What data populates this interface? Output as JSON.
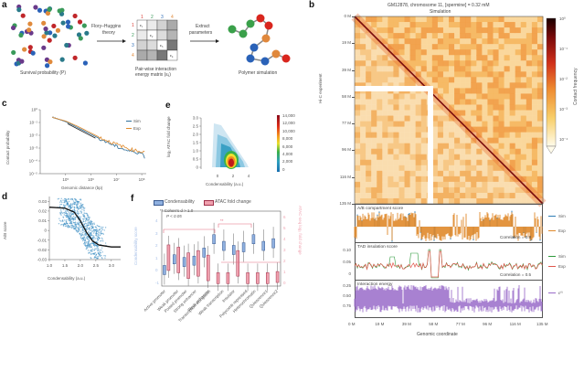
{
  "panels": {
    "a": {
      "label": "a",
      "survival_caption": "Survival probability (P)",
      "arrow1_text_line1": "Flory–Huggins",
      "arrow1_text_line2": "theory",
      "matrix_caption_line1": "Pair-wise interaction",
      "matrix_caption_line2": "energy matrix (εᵢⱼ)",
      "matrix_indices": [
        "1",
        "2",
        "3",
        "4"
      ],
      "matrix_diag": [
        "ε₁",
        "ε₂",
        "ε₃",
        "ε₄"
      ],
      "arrow2_text_line1": "Extract",
      "arrow2_text_line2": "parameters",
      "polymer_caption": "Polymer simulation",
      "index_colors": [
        "#d9403a",
        "#3a9a5a",
        "#2f6db5",
        "#e08a3c"
      ]
    },
    "b": {
      "label": "b",
      "title": "GM12878, chromosome 11, [spermine] = 0.32 mM",
      "subtitle": "Simulation",
      "y_axis_label": "Hi-C experiment",
      "y_ticks": [
        "0 M",
        "19 M",
        "39 M",
        "58 M",
        "77 M",
        "96 M",
        "116 M",
        "135 M"
      ],
      "x_ticks": [
        "0 M",
        "19 M",
        "39 M",
        "58 M",
        "77 M",
        "96 M",
        "116 M",
        "135 M"
      ],
      "x_axis_label": "Genomic coordinate",
      "colorbar_label": "Contact frequency",
      "colorbar_ticks": [
        "10⁰",
        "10⁻¹",
        "10⁻²",
        "10⁻³",
        "10⁻⁴"
      ],
      "tracks": [
        {
          "title": "A/B compartment score",
          "legend": [
            "Sim",
            "Exp"
          ],
          "legend_colors": [
            "#2f7db5",
            "#e08a2c"
          ],
          "correlation": "Correlation = 0.8",
          "y_ticks": []
        },
        {
          "title": "TAD insulation score",
          "legend": [
            "Sim",
            "Exp"
          ],
          "legend_colors": [
            "#2e9a3c",
            "#e0574c"
          ],
          "correlation": "Correlation = 0.5",
          "y_ticks": [
            "0.10",
            "0.05",
            "0"
          ]
        },
        {
          "title": "Interaction energy",
          "legend": [
            "ε⁽ⁱ⁾"
          ],
          "legend_colors": [
            "#9a6cc9"
          ],
          "correlation": "",
          "y_ticks": [
            "0.25",
            "0.50",
            "0.75"
          ]
        }
      ]
    },
    "c": {
      "label": "c",
      "y_axis_label": "Contact probability",
      "x_axis_label": "Genomic distance (bp)",
      "y_ticks": [
        "10⁰",
        "10⁻¹",
        "10⁻²",
        "10⁻³",
        "10⁻⁴",
        "10⁻⁵"
      ],
      "x_ticks": [
        "10⁵",
        "10⁶",
        "10⁷",
        "10⁸"
      ],
      "legend": [
        "Sim",
        "Exp"
      ],
      "legend_colors": [
        "#2f6f9a",
        "#e08a2c"
      ]
    },
    "d": {
      "label": "d",
      "y_axis_label": "A/B score",
      "x_axis_label": "Condensability (a.u.)",
      "y_ticks": [
        "0.03",
        "0.02",
        "0.01",
        "0",
        "-0.01",
        "-0.02",
        "-0.03"
      ],
      "x_ticks": [
        "1.0",
        "1.5",
        "2.0",
        "2.5",
        "3.0"
      ],
      "point_color": "#2f86c0"
    },
    "e": {
      "label": "e",
      "y_axis_label": "log₂ ATAC fold change",
      "x_axis_label": "Condensability (a.u.)",
      "y_ticks": [
        "3.0",
        "2.5",
        "2.0",
        "1.5",
        "1.0",
        "0.5",
        "0"
      ],
      "x_ticks": [
        "0",
        "2",
        "4"
      ],
      "colorbar_ticks": [
        "14,000",
        "12,000",
        "10,000",
        "8,000",
        "6,000",
        "4,000",
        "2,000",
        "0"
      ]
    },
    "f": {
      "label": "f",
      "legend": [
        "Condensability",
        "ATAC fold change"
      ],
      "legend_colors": [
        "#8fb0e0",
        "#f0a0ae"
      ],
      "annotation_line1": "** Cohen's d > 1.0",
      "annotation_line2": "P < 0.05",
      "y_left_label": "Condensability score",
      "y_left_ticks": [
        "4",
        "3",
        "2",
        "1",
        "0",
        "-1"
      ],
      "y_right_label": "ATAC-seq log₂ fold change",
      "y_right_ticks": [
        "6",
        "5",
        "4",
        "3",
        "2",
        "1",
        "0"
      ],
      "categories": [
        "Active promoter",
        "Weak promoter",
        "Poised promoter",
        "Strong enhancer",
        "Weak enhancer",
        "Transcription elongation",
        "Weak transcription",
        "Insulator",
        "Polycomb repressed",
        "Heterochromatin",
        "Quiescence1",
        "Quiescence2"
      ]
    }
  },
  "chart_data": [
    {
      "type": "line",
      "title": "",
      "xlabel": "Genomic distance (bp)",
      "ylabel": "Contact probability",
      "xscale": "log",
      "yscale": "log",
      "xlim": [
        10000,
        150000000
      ],
      "ylim": [
        1e-05,
        1
      ],
      "series": [
        {
          "name": "Sim",
          "x": [
            30000,
            100000,
            300000,
            1000000,
            3000000,
            10000000,
            30000000,
            100000000,
            130000000
          ],
          "y": [
            0.25,
            0.12,
            0.04,
            0.012,
            0.004,
            0.0013,
            0.0006,
            0.0004,
            0.0002
          ]
        },
        {
          "name": "Exp",
          "x": [
            30000,
            100000,
            300000,
            1000000,
            3000000,
            10000000,
            30000000,
            100000000,
            130000000
          ],
          "y": [
            0.25,
            0.13,
            0.05,
            0.015,
            0.005,
            0.002,
            0.0009,
            0.0005,
            0.0006
          ]
        }
      ]
    },
    {
      "type": "scatter",
      "xlabel": "Condensability (a.u.)",
      "ylabel": "A/B score",
      "xlim": [
        1.0,
        3.3
      ],
      "ylim": [
        -0.03,
        0.035
      ],
      "fit_curve": {
        "x": [
          1.0,
          1.5,
          1.8,
          2.0,
          2.2,
          2.4,
          2.6,
          3.0,
          3.3
        ],
        "y": [
          0.024,
          0.023,
          0.019,
          0.01,
          -0.002,
          -0.011,
          -0.015,
          -0.017,
          -0.017
        ]
      }
    },
    {
      "type": "heatmap",
      "xlabel": "Condensability (a.u.)",
      "ylabel": "log₂ ATAC fold change",
      "xlim": [
        -1.5,
        5.5
      ],
      "ylim": [
        0,
        3.2
      ],
      "color_range": [
        0,
        15000
      ],
      "peak": {
        "x": 2.7,
        "y": 0.4,
        "count": 14000
      }
    },
    {
      "type": "bar",
      "subtype": "boxplot",
      "categories": [
        "Active promoter",
        "Weak promoter",
        "Poised promoter",
        "Strong enhancer",
        "Weak enhancer",
        "Transcription elongation",
        "Weak transcription",
        "Insulator",
        "Polycomb repressed",
        "Heterochromatin",
        "Quiescence1",
        "Quiescence2"
      ],
      "series": [
        {
          "name": "Condensability",
          "median": [
            0.2,
            1.0,
            0.8,
            0.9,
            1.5,
            2.5,
            2.0,
            1.7,
            1.9,
            2.5,
            2.0,
            2.2
          ]
        },
        {
          "name": "ATAC fold change",
          "median": [
            2.5,
            2.3,
            1.8,
            2.0,
            1.6,
            0.7,
            0.7,
            2.0,
            0.7,
            0.7,
            0.7,
            0.8
          ]
        }
      ]
    }
  ]
}
